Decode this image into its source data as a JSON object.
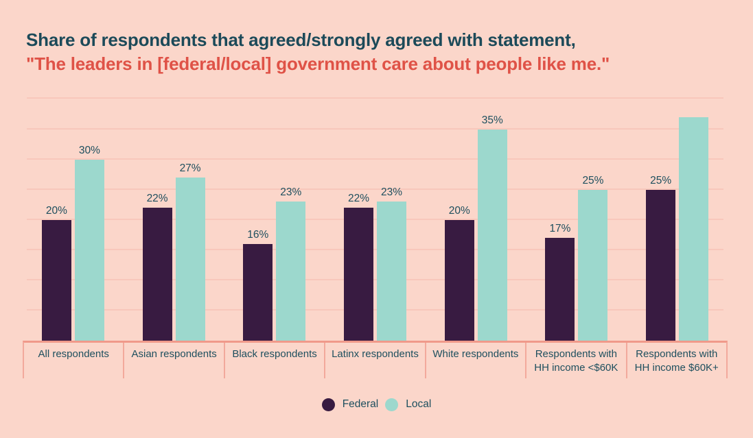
{
  "header": {
    "title_line1": "Share of respondents that agreed/strongly agreed with statement,",
    "title_line2": "\"The leaders in [federal/local] government care about people like me.\""
  },
  "chart_data": {
    "type": "bar",
    "title": "Share of respondents that agreed/strongly agreed with statement, \"The leaders in [federal/local] government care about people like me.\"",
    "categories": [
      "All respondents",
      "Asian respondents",
      "Black respondents",
      "Latinx respondents",
      "White respondents",
      "Respondents with HH income <$60K",
      "Respondents with HH income $60K+"
    ],
    "series": [
      {
        "name": "Federal",
        "color": "#381b41",
        "values": [
          20,
          22,
          16,
          22,
          20,
          17,
          25
        ],
        "value_labels": [
          "20%",
          "22%",
          "16%",
          "22%",
          "20%",
          "17%",
          "25%"
        ]
      },
      {
        "name": "Local",
        "color": "#9cd8cd",
        "values": [
          30,
          27,
          23,
          23,
          35,
          25,
          37
        ],
        "value_labels": [
          "30%",
          "27%",
          "23%",
          "23%",
          "35%",
          "25%",
          ""
        ]
      }
    ],
    "ylim": [
      0,
      40.5
    ],
    "grid": true,
    "grid_step": 5,
    "xlabel": "",
    "ylabel": "",
    "legend_position": "bottom"
  },
  "legend": {
    "items": [
      {
        "label": "Federal",
        "color": "#381b41"
      },
      {
        "label": "Local",
        "color": "#9cd8cd"
      }
    ]
  },
  "style": {
    "background": "#fbd6ca",
    "title_color": "#1c4a59",
    "subtitle_color": "#df5247",
    "label_color": "#1d4f5e",
    "gridline_color": "#f8c7bb",
    "axis_line_color": "#f0998a"
  }
}
